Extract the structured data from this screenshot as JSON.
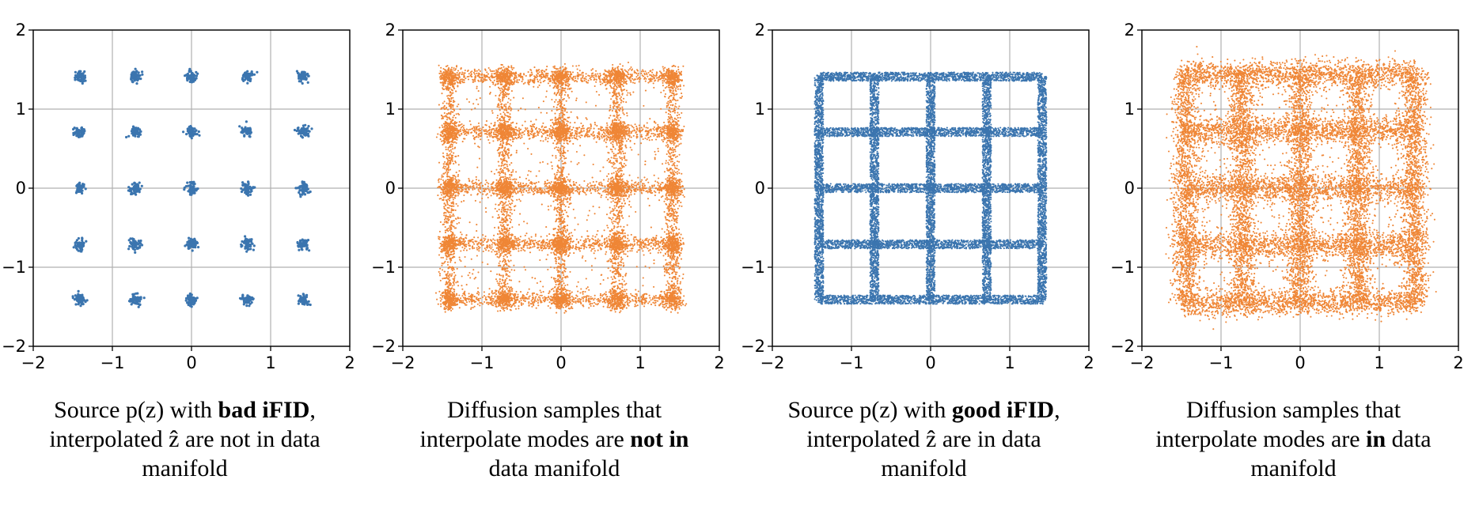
{
  "chart_data": [
    {
      "type": "scatter",
      "pattern": "grid_points",
      "color": "#3b75af",
      "xlim": [
        -2,
        2
      ],
      "ylim": [
        -2,
        2
      ],
      "xticks": [
        -2,
        -1,
        0,
        1,
        2
      ],
      "yticks": [
        -2,
        -1,
        0,
        1,
        2
      ],
      "xtick_labels": [
        "−2",
        "−1",
        "0",
        "1",
        "2"
      ],
      "ytick_labels": [
        "−2",
        "−1",
        "0",
        "1",
        "2"
      ],
      "grid": true,
      "modes": [
        -1.41,
        -0.71,
        0,
        0.71,
        1.41
      ],
      "caption": {
        "l1_pre": "Source p(z) with ",
        "l1_bold": "bad iFID",
        "l1_post": ",",
        "l2": "interpolated ẑ are not in data",
        "l3": "manifold"
      }
    },
    {
      "type": "scatter",
      "pattern": "diffusion_interpolate",
      "color": "#ef8636",
      "xlim": [
        -2,
        2
      ],
      "ylim": [
        -2,
        2
      ],
      "xticks": [
        -2,
        -1,
        0,
        1,
        2
      ],
      "yticks": [
        -2,
        -1,
        0,
        1,
        2
      ],
      "xtick_labels": [
        "−2",
        "−1",
        "0",
        "1",
        "2"
      ],
      "ytick_labels": [
        "−2",
        "−1",
        "0",
        "1",
        "2"
      ],
      "grid": true,
      "modes": [
        -1.41,
        -0.71,
        0,
        0.71,
        1.41
      ],
      "caption": {
        "l1": "Diffusion samples that",
        "l2_pre": "interpolate modes are ",
        "l2_bold": "not in",
        "l3": "data manifold"
      }
    },
    {
      "type": "scatter",
      "pattern": "grid_lines",
      "color": "#3b75af",
      "xlim": [
        -2,
        2
      ],
      "ylim": [
        -2,
        2
      ],
      "xticks": [
        -2,
        -1,
        0,
        1,
        2
      ],
      "yticks": [
        -2,
        -1,
        0,
        1,
        2
      ],
      "xtick_labels": [
        "−2",
        "−1",
        "0",
        "1",
        "2"
      ],
      "ytick_labels": [
        "−2",
        "−1",
        "0",
        "1",
        "2"
      ],
      "grid": true,
      "modes": [
        -1.41,
        -0.71,
        0,
        0.71,
        1.41
      ],
      "caption": {
        "l1_pre": "Source p(z) with ",
        "l1_bold": "good iFID",
        "l1_post": ",",
        "l2": "interpolated ẑ are in data",
        "l3": "manifold"
      }
    },
    {
      "type": "scatter",
      "pattern": "diffusion_lines",
      "color": "#ef8636",
      "xlim": [
        -2,
        2
      ],
      "ylim": [
        -2,
        2
      ],
      "xticks": [
        -2,
        -1,
        0,
        1,
        2
      ],
      "yticks": [
        -2,
        -1,
        0,
        1,
        2
      ],
      "xtick_labels": [
        "−2",
        "−1",
        "0",
        "1",
        "2"
      ],
      "ytick_labels": [
        "−2",
        "−1",
        "0",
        "1",
        "2"
      ],
      "grid": true,
      "modes": [
        -1.41,
        -0.71,
        0,
        0.71,
        1.41
      ],
      "caption": {
        "l1": "Diffusion samples that",
        "l2_pre": "interpolate modes are ",
        "l2_bold": "in",
        "l2_post": " data",
        "l3": "manifold"
      }
    }
  ]
}
